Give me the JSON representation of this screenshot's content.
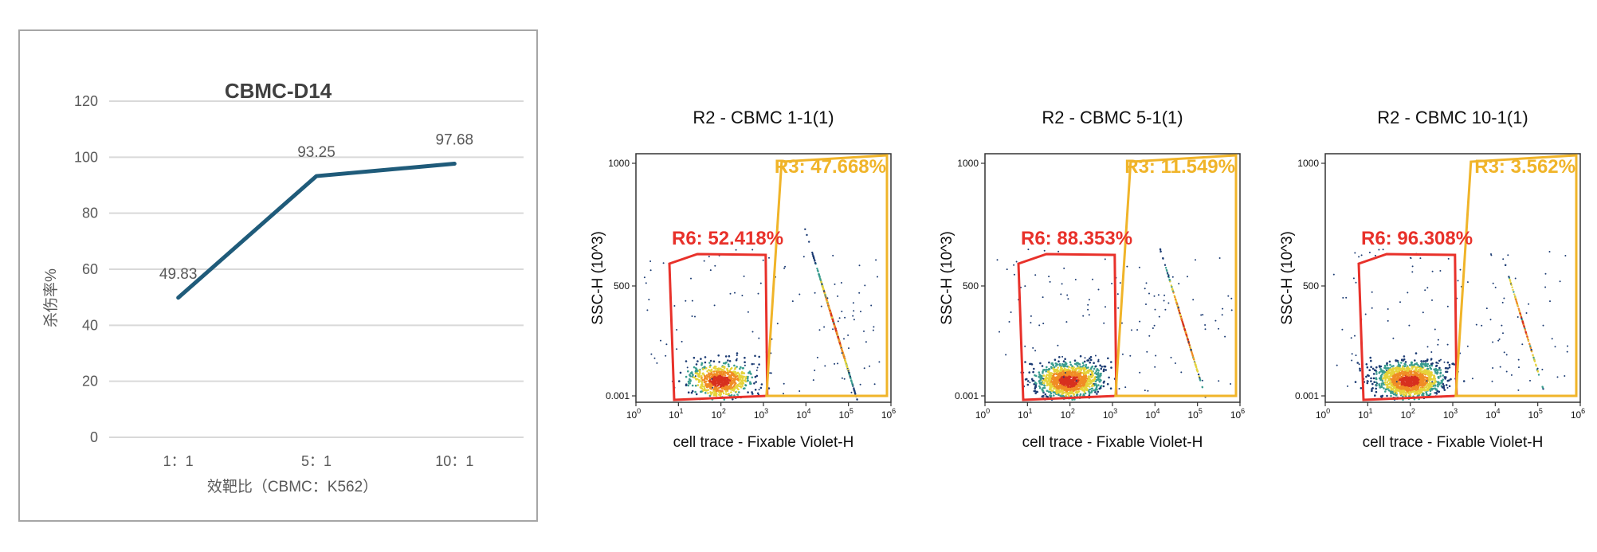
{
  "chart_data": [
    {
      "type": "line",
      "title": "CBMC-D14",
      "xlabel": "效靶比（CBMC：K562）",
      "ylabel": "杀伤率%",
      "categories": [
        "1：1",
        "5：1",
        "10：1"
      ],
      "series": [
        {
          "name": "杀伤率%",
          "values": [
            49.83,
            93.25,
            97.68
          ],
          "labels": [
            "49.83",
            "93.25",
            "97.68"
          ]
        }
      ],
      "ylim": [
        0,
        120
      ],
      "yticks": [
        0,
        20,
        40,
        60,
        80,
        100,
        120
      ],
      "grid": true,
      "colors": {
        "line": "#1f5b7a",
        "grid": "#d9d9d9",
        "text": "#595959"
      }
    },
    {
      "type": "scatter",
      "title": "R2 - CBMC 1-1(1)",
      "xlabel": "cell trace - Fixable Violet-H",
      "ylabel": "SSC-H (10^3)",
      "yticks": [
        "1000",
        "500",
        "0.001"
      ],
      "xticks_exp": [
        "0",
        "1",
        "2",
        "3",
        "4",
        "5",
        "6"
      ],
      "xticks_base": "10",
      "gates": [
        {
          "name": "R6",
          "label": "R6: 52.418%",
          "percent": 52.418,
          "color": "#e8312a"
        },
        {
          "name": "R3",
          "label": "R3: 47.668%",
          "percent": 47.668,
          "color": "#f0b429"
        }
      ]
    },
    {
      "type": "scatter",
      "title": "R2 - CBMC 5-1(1)",
      "xlabel": "cell trace - Fixable Violet-H",
      "ylabel": "SSC-H (10^3)",
      "yticks": [
        "1000",
        "500",
        "0.001"
      ],
      "xticks_exp": [
        "0",
        "1",
        "2",
        "3",
        "4",
        "5",
        "6"
      ],
      "xticks_base": "10",
      "gates": [
        {
          "name": "R6",
          "label": "R6: 88.353%",
          "percent": 88.353,
          "color": "#e8312a"
        },
        {
          "name": "R3",
          "label": "R3: 11.549%",
          "percent": 11.549,
          "color": "#f0b429"
        }
      ]
    },
    {
      "type": "scatter",
      "title": "R2 - CBMC 10-1(1)",
      "xlabel": "cell trace - Fixable Violet-H",
      "ylabel": "SSC-H (10^3)",
      "yticks": [
        "1000",
        "500",
        "0.001"
      ],
      "xticks_exp": [
        "0",
        "1",
        "2",
        "3",
        "4",
        "5",
        "6"
      ],
      "xticks_base": "10",
      "gates": [
        {
          "name": "R6",
          "label": "R6: 96.308%",
          "percent": 96.308,
          "color": "#e8312a"
        },
        {
          "name": "R3",
          "label": "R3: 3.562%",
          "percent": 3.562,
          "color": "#f0b429"
        }
      ]
    }
  ]
}
